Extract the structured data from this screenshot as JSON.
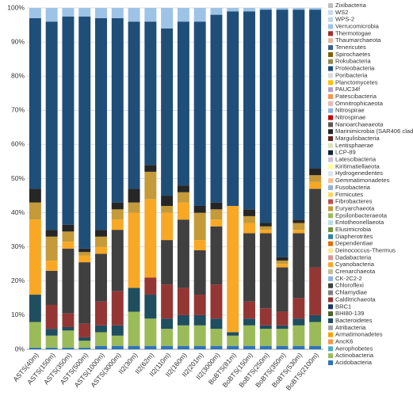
{
  "chart_data": {
    "type": "stacked_bar",
    "categories": [
      "ASTS(40m)",
      "ASTS(150m)",
      "ASTS(350m)",
      "ASTS(500m)",
      "ASTS(1000m)",
      "ASTS(3000m)",
      "II2(30m)",
      "II2(62m)",
      "II2(110m)",
      "II2(160m)",
      "II2(201m)",
      "II2(3000m)",
      "BoBTS(81m)",
      "BoBTS(150m)",
      "BoBTS(250m)",
      "BoBTS(350m)",
      "BoBTS(530m)",
      "BoBTS(2100m)"
    ],
    "ylim": [
      0,
      100
    ],
    "yticks": [
      {
        "value": 0,
        "label": "0%"
      },
      {
        "value": 10,
        "label": "10%"
      },
      {
        "value": 20,
        "label": "20%"
      },
      {
        "value": 30,
        "label": "30%"
      },
      {
        "value": 40,
        "label": "40%"
      },
      {
        "value": 50,
        "label": "50%"
      },
      {
        "value": 60,
        "label": "60%"
      },
      {
        "value": 70,
        "label": "70%"
      },
      {
        "value": 80,
        "label": "80%"
      },
      {
        "value": 90,
        "label": "90%"
      },
      {
        "value": 100,
        "label": "100%"
      }
    ],
    "grid": true,
    "legend": "right",
    "series": [
      {
        "name": "Acidobacteria",
        "color": "#2e75b6",
        "values": [
          0.5,
          0.5,
          0.5,
          0.5,
          1,
          1,
          1,
          1,
          1,
          1,
          1,
          1,
          1,
          1,
          1,
          1,
          1,
          1
        ]
      },
      {
        "name": "Actinobacteria",
        "color": "#9bbb59",
        "values": [
          7.5,
          3.5,
          5,
          2,
          4,
          3,
          10,
          8,
          5,
          6,
          6,
          5,
          3,
          6,
          5,
          5,
          6,
          7
        ]
      },
      {
        "name": "Aerophobetes",
        "color": "#4bacc6",
        "values": [
          0,
          0,
          0,
          0,
          0,
          0,
          0,
          0,
          0,
          0,
          0,
          0,
          0,
          0,
          0,
          0,
          0,
          0
        ]
      },
      {
        "name": "AncK6",
        "color": "#f79646",
        "values": [
          0,
          0,
          0,
          0,
          0,
          0,
          0,
          0,
          0,
          0,
          0,
          0,
          0,
          0,
          0,
          0,
          0,
          0
        ]
      },
      {
        "name": "Armatimonadetes",
        "color": "#f4a300",
        "values": [
          0,
          0,
          0,
          0,
          0,
          0,
          0,
          0,
          0,
          0,
          0,
          0,
          0,
          0,
          0,
          0,
          0,
          0
        ]
      },
      {
        "name": "Atribacteria",
        "color": "#a5a5a5",
        "values": [
          0,
          0,
          0,
          0,
          0,
          0,
          0,
          0,
          0,
          0,
          0,
          0,
          0,
          0,
          0,
          0,
          0,
          0
        ]
      },
      {
        "name": "Bacteroidetes",
        "color": "#1f4e5f",
        "values": [
          8,
          2,
          1,
          1,
          2,
          3,
          7,
          7,
          3,
          3,
          3,
          3,
          1,
          2,
          1,
          1,
          2,
          2
        ]
      },
      {
        "name": "BHI80-139",
        "color": "#4f6228",
        "values": [
          0,
          0,
          0,
          0,
          0,
          0,
          0,
          0,
          0,
          0,
          0,
          0,
          0,
          0,
          0,
          0,
          0,
          0
        ]
      },
      {
        "name": "BRC1",
        "color": "#17375e",
        "values": [
          0,
          0,
          0,
          0,
          0,
          0,
          0,
          0,
          0,
          0,
          0,
          0,
          0,
          0,
          0,
          0,
          0,
          0
        ]
      },
      {
        "name": "Calditrichaeota",
        "color": "#943634",
        "values": [
          0,
          7,
          4,
          4,
          7,
          10,
          0,
          5,
          10,
          8,
          6,
          10,
          0,
          5,
          5,
          4,
          6,
          14
        ]
      },
      {
        "name": "Chlamydiae",
        "color": "#7f7f7f",
        "values": [
          0,
          0,
          0,
          0,
          0,
          0,
          0,
          0,
          0,
          0,
          0,
          0,
          0,
          0,
          0,
          0,
          0,
          0
        ]
      },
      {
        "name": "Chloroflexi",
        "color": "#404040",
        "values": [
          0,
          10,
          19,
          18,
          14,
          18,
          0,
          0,
          13,
          20,
          13,
          17,
          0,
          20,
          22,
          13,
          19,
          23
        ]
      },
      {
        "name": "CK-2C2-2",
        "color": "#8db3e2",
        "values": [
          0,
          0,
          0,
          0,
          0,
          0,
          0,
          0,
          0,
          0,
          0,
          0,
          0,
          0,
          0,
          0,
          0,
          0
        ]
      },
      {
        "name": "Crenarchaeota",
        "color": "#c4bd97",
        "values": [
          0,
          0,
          0,
          0,
          0,
          0,
          0,
          0,
          0,
          0,
          0,
          0,
          0,
          0,
          0,
          0,
          0,
          0
        ]
      },
      {
        "name": "Cyanobacteria",
        "color": "#f9a825",
        "values": [
          22,
          3,
          2,
          2,
          2,
          3,
          22,
          23,
          8,
          5,
          3,
          2,
          37,
          3,
          1,
          1,
          1,
          2
        ]
      },
      {
        "name": "Dadabacteria",
        "color": "#d99694",
        "values": [
          0,
          0,
          0,
          0,
          0,
          0,
          0,
          0,
          0,
          0,
          0,
          0,
          0,
          0,
          0,
          0,
          0,
          0
        ]
      },
      {
        "name": "Deinococcus-Thermus",
        "color": "#ffe699",
        "values": [
          0,
          0,
          0,
          0,
          0,
          0,
          0,
          0,
          0,
          0,
          0,
          0,
          0,
          0,
          0,
          0,
          0,
          0
        ]
      },
      {
        "name": "Dependentiae",
        "color": "#e46c0a",
        "values": [
          0,
          0,
          0,
          0,
          0,
          0,
          0,
          0,
          0,
          0,
          0,
          0,
          0,
          0,
          0,
          0,
          0,
          0
        ]
      },
      {
        "name": "Diapherotrites",
        "color": "#31859c",
        "values": [
          0,
          0,
          0,
          0,
          0,
          0,
          0,
          0,
          0,
          0,
          0,
          0,
          0,
          0,
          0,
          0,
          0,
          0
        ]
      },
      {
        "name": "Elusimicrobia",
        "color": "#76923c",
        "values": [
          0,
          0,
          0,
          0,
          0,
          0,
          0,
          0,
          0,
          0,
          0,
          0,
          0,
          0,
          0,
          0,
          0,
          0
        ]
      },
      {
        "name": "Entotheonellaeota",
        "color": "#b7dee8",
        "values": [
          0,
          0,
          0,
          0,
          0,
          0,
          0,
          0,
          0,
          0,
          0,
          0,
          0,
          0,
          0,
          0,
          0,
          0
        ]
      },
      {
        "name": "Epsilonbacteraeota",
        "color": "#9bbb59",
        "values": [
          0,
          0,
          0,
          0,
          0,
          0,
          0,
          0,
          0,
          0,
          0,
          0,
          0,
          0,
          0,
          0,
          0,
          0
        ]
      },
      {
        "name": "Euryarchaeota",
        "color": "#c49a3a",
        "values": [
          5,
          7,
          3,
          1,
          3,
          3,
          3,
          8,
          2,
          3,
          8,
          3,
          0,
          2,
          1,
          1,
          2,
          2
        ]
      },
      {
        "name": "Fibrobacteres",
        "color": "#c0504d",
        "values": [
          0,
          0,
          0,
          0,
          0,
          0,
          0,
          0,
          0,
          0,
          0,
          0,
          0,
          0,
          0,
          0,
          0,
          0
        ]
      },
      {
        "name": "Firmicutes",
        "color": "#ffd966",
        "values": [
          0,
          0,
          0,
          0,
          0,
          0,
          0,
          0,
          0,
          0,
          0,
          0,
          0,
          0,
          0,
          0,
          0,
          0
        ]
      },
      {
        "name": "Fusobacteria",
        "color": "#95b3d7",
        "values": [
          0,
          0,
          0,
          0,
          0,
          0,
          0,
          0,
          0,
          0,
          0,
          0,
          0,
          0,
          0,
          0,
          0,
          0
        ]
      },
      {
        "name": "Gemmatimonadetes",
        "color": "#fac090",
        "values": [
          0,
          0,
          0,
          0,
          0,
          0,
          0,
          0,
          0,
          0,
          0,
          0,
          0,
          0,
          0,
          0,
          0,
          0
        ]
      },
      {
        "name": "Hydrogenedentes",
        "color": "#dbe5f1",
        "values": [
          0,
          0,
          0,
          0,
          0,
          0,
          0,
          0,
          0,
          0,
          0,
          0,
          0,
          0,
          0,
          0,
          0,
          0
        ]
      },
      {
        "name": "Kiritimatiellaeota",
        "color": "#ffff99",
        "values": [
          0,
          0,
          0,
          0,
          0,
          0,
          0,
          0,
          0,
          0,
          0,
          0,
          0,
          0,
          0,
          0,
          0,
          0
        ]
      },
      {
        "name": "Latescibacteria",
        "color": "#ccc1da",
        "values": [
          0,
          0,
          0,
          0,
          0,
          0,
          0,
          0,
          0,
          0,
          0,
          0,
          0,
          0,
          0,
          0,
          0,
          0
        ]
      },
      {
        "name": "LCP-89",
        "color": "#0f243e",
        "values": [
          0,
          0,
          0,
          0,
          0,
          0,
          0,
          0,
          0,
          0,
          0,
          0,
          0,
          0,
          0,
          0,
          0,
          0
        ]
      },
      {
        "name": "Lentisphaerae",
        "color": "#d7e4bd",
        "values": [
          0,
          0,
          0,
          0,
          0,
          0,
          0,
          0,
          0,
          0,
          0,
          0,
          0,
          0,
          0,
          0,
          0,
          0
        ]
      },
      {
        "name": "Margulisbacteria",
        "color": "#632523",
        "values": [
          0,
          0,
          0,
          0,
          0,
          0,
          0,
          0,
          0,
          0,
          0,
          0,
          0,
          0,
          0,
          0,
          0,
          0
        ]
      },
      {
        "name": "Marinimicrobia (SAR406 clade)",
        "color": "#262626",
        "values": [
          4,
          2,
          2,
          1,
          2,
          2,
          4,
          2,
          3,
          2,
          2,
          2,
          0,
          2,
          1,
          1,
          1,
          2
        ]
      },
      {
        "name": "Nanoarchaeaeota",
        "color": "#595959",
        "values": [
          0,
          0,
          0,
          0,
          0,
          0,
          0,
          0,
          0,
          0,
          0,
          0,
          0,
          0,
          0,
          0,
          0,
          0
        ]
      },
      {
        "name": "Nitrospinae",
        "color": "#c00000",
        "values": [
          0,
          0,
          0,
          0,
          0,
          0,
          0,
          0,
          0,
          0,
          0,
          0,
          0,
          0,
          0,
          0,
          0,
          0
        ]
      },
      {
        "name": "Nitrospirae",
        "color": "#8eb4e3",
        "values": [
          0,
          0,
          0,
          0,
          0,
          0,
          0,
          0,
          0,
          0,
          0,
          0,
          0,
          0,
          0,
          0,
          0,
          0
        ]
      },
      {
        "name": "Omnitrophicaeota",
        "color": "#e6b9b8",
        "values": [
          0,
          0,
          0,
          0,
          0,
          0,
          0,
          0,
          0,
          0,
          0,
          0,
          0,
          0,
          0,
          0,
          0,
          0
        ]
      },
      {
        "name": "Patescibacteria",
        "color": "#f79646",
        "values": [
          0,
          0,
          0,
          0,
          0,
          0,
          0,
          0,
          0,
          0,
          0,
          0,
          0,
          0,
          0,
          0,
          0,
          0
        ]
      },
      {
        "name": "PAUC34f",
        "color": "#b3a2c7",
        "values": [
          0,
          0,
          0,
          0,
          0,
          0,
          0,
          0,
          0,
          0,
          0,
          0,
          0,
          0,
          0,
          0,
          0,
          0
        ]
      },
      {
        "name": "Planctomycetes",
        "color": "#ffc000",
        "values": [
          0,
          0,
          0,
          0,
          0,
          0,
          0,
          0,
          0,
          0,
          0,
          0,
          0,
          0,
          0,
          0,
          0,
          0
        ]
      },
      {
        "name": "Poribacteria",
        "color": "#d9d9d9",
        "values": [
          0,
          0,
          0,
          0,
          0,
          0,
          0,
          0,
          0,
          0,
          0,
          0,
          0,
          0,
          0,
          0,
          0,
          0
        ]
      },
      {
        "name": "Proteobacteria",
        "color": "#1f4e79",
        "values": [
          50,
          61,
          61,
          68,
          62,
          54,
          49,
          42,
          49,
          48,
          54,
          55,
          57,
          58,
          62.5,
          72.5,
          61.5,
          46.5
        ]
      },
      {
        "name": "Rokubacteria",
        "color": "#948a54",
        "values": [
          0,
          0,
          0,
          0,
          0,
          0,
          0,
          0,
          0,
          0,
          0,
          0,
          0,
          0,
          0,
          0,
          0,
          0
        ]
      },
      {
        "name": "Spirochaetes",
        "color": "#7f6000",
        "values": [
          0,
          0,
          0,
          0,
          0,
          0,
          0,
          0,
          0,
          0,
          0,
          0,
          0,
          0,
          0,
          0,
          0,
          0
        ]
      },
      {
        "name": "Tenericutes",
        "color": "#376092",
        "values": [
          0,
          0,
          0,
          0,
          0,
          0,
          0,
          0,
          0,
          0,
          0,
          0,
          0,
          0,
          0,
          0,
          0,
          0
        ]
      },
      {
        "name": "Thaumarchaeota",
        "color": "#e5b8a0",
        "values": [
          0,
          0,
          0,
          0,
          0,
          0,
          0,
          0,
          0,
          0,
          0,
          0,
          0,
          0,
          0,
          0,
          0,
          0
        ]
      },
      {
        "name": "Thermotogae",
        "color": "#a0302d",
        "values": [
          0,
          0,
          0,
          0,
          0,
          0,
          0,
          0,
          0,
          0,
          0,
          0,
          0,
          0,
          0,
          0,
          0,
          0
        ]
      },
      {
        "name": "Verrucomicrobia",
        "color": "#9dc3e6",
        "values": [
          3,
          4,
          2.5,
          2.5,
          3,
          3,
          4,
          4,
          6,
          4,
          4,
          2,
          1,
          1,
          0.5,
          0.5,
          0.5,
          0.5
        ]
      },
      {
        "name": "WPS-2",
        "color": "#bdd7ee",
        "values": [
          0,
          0,
          0,
          0,
          0,
          0,
          0,
          0,
          0,
          0,
          0,
          0,
          0,
          0,
          0,
          0,
          0,
          0
        ]
      },
      {
        "name": "WS2",
        "color": "#c6d9f0",
        "values": [
          0,
          0,
          0,
          0,
          0,
          0,
          0,
          0,
          0,
          0,
          0,
          0,
          0,
          0,
          0,
          0,
          0,
          0
        ]
      },
      {
        "name": "Zixibacteria",
        "color": "#bfbfbf",
        "values": [
          0,
          0,
          0,
          0,
          0,
          0,
          0,
          0,
          0,
          0,
          0,
          0,
          0,
          0,
          0,
          0,
          0,
          0
        ]
      }
    ]
  }
}
